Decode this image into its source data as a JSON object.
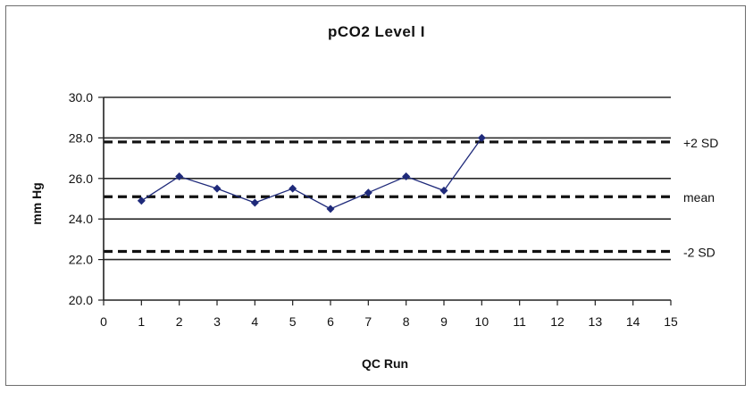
{
  "chart_data": {
    "type": "line",
    "title": "pCO2 Level I",
    "xlabel": "QC Run",
    "ylabel": "mm Hg",
    "xlim": [
      0,
      15
    ],
    "ylim": [
      20.0,
      30.0
    ],
    "x_ticks": [
      "0",
      "1",
      "2",
      "3",
      "4",
      "5",
      "6",
      "7",
      "8",
      "9",
      "10",
      "11",
      "12",
      "13",
      "14",
      "15"
    ],
    "y_ticks": [
      "20.0",
      "22.0",
      "24.0",
      "26.0",
      "28.0",
      "30.0"
    ],
    "grid": "horizontal",
    "series": [
      {
        "x": [
          1,
          2,
          3,
          4,
          5,
          6,
          7,
          8,
          9,
          10
        ],
        "y": [
          24.9,
          26.1,
          25.5,
          24.8,
          25.5,
          24.5,
          25.3,
          26.1,
          25.4,
          28.0
        ],
        "color": "#1f2a7a"
      }
    ],
    "reference_lines": [
      {
        "label": "+2 SD",
        "y": 27.8
      },
      {
        "label": "mean",
        "y": 25.1
      },
      {
        "label": "-2 SD",
        "y": 22.4
      }
    ]
  }
}
